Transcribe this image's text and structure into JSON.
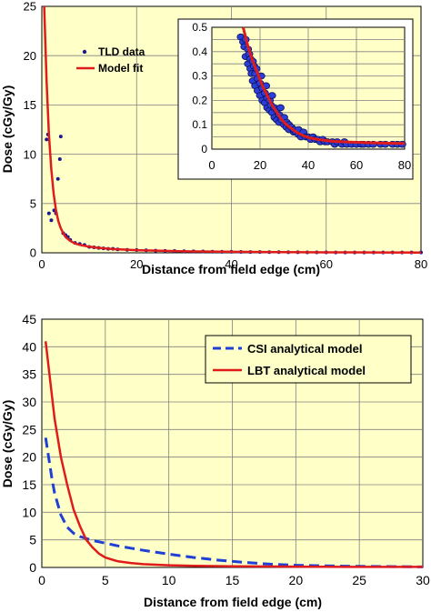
{
  "chart_data": [
    {
      "type": "scatter",
      "panel": "top",
      "xlabel": "Distance from field edge (cm)",
      "ylabel": "Dose (cGy/Gy)",
      "xlim": [
        0,
        80
      ],
      "ylim": [
        0,
        25
      ],
      "xticks": [
        "0",
        "20",
        "40",
        "60",
        "80"
      ],
      "yticks": [
        "0",
        "5",
        "10",
        "15",
        "20",
        "25"
      ],
      "grid": true,
      "legend_position": "top-left",
      "colors": {
        "plot_bg": "#ffffc8",
        "points": "#1a1a8c",
        "fit": "#e01b1b",
        "grid": "#808080"
      },
      "series": [
        {
          "name": "TLD data",
          "kind": "scatter",
          "x": [
            1.0,
            1.3,
            1.5,
            2.0,
            2.6,
            3.0,
            3.4,
            3.8,
            4.0,
            4.5,
            5.0,
            5.5,
            6.0,
            7.0,
            8.0,
            9.0,
            10.0,
            11.0,
            12.0,
            13.0,
            14.0,
            15.0,
            16.0,
            18.0,
            20.0,
            22.0,
            24.0,
            26.0,
            28.0,
            30.0,
            32.0,
            34.0,
            36.0,
            38.0,
            40.0,
            42.0,
            44.0,
            46.0,
            48.0,
            50.0,
            52.0,
            54.0,
            56.0,
            58.0,
            60.0,
            62.0,
            64.0,
            66.0,
            68.0,
            70.0,
            72.0,
            74.0,
            76.0,
            78.0,
            80.0
          ],
          "y": [
            11.5,
            12.0,
            4.0,
            3.3,
            4.3,
            4.0,
            7.5,
            9.5,
            11.8,
            2.0,
            1.8,
            1.6,
            1.3,
            1.0,
            0.9,
            0.8,
            0.6,
            0.55,
            0.5,
            0.45,
            0.4,
            0.4,
            0.35,
            0.3,
            0.28,
            0.25,
            0.22,
            0.2,
            0.18,
            0.16,
            0.15,
            0.14,
            0.12,
            0.1,
            0.1,
            0.09,
            0.08,
            0.08,
            0.07,
            0.07,
            0.06,
            0.06,
            0.05,
            0.05,
            0.05,
            0.04,
            0.04,
            0.04,
            0.04,
            0.03,
            0.03,
            0.03,
            0.03,
            0.03,
            0.03
          ]
        },
        {
          "name": "Model fit",
          "kind": "line",
          "x": [
            0.5,
            1.0,
            1.5,
            2.0,
            2.5,
            3.0,
            3.5,
            4.0,
            4.5,
            5.0,
            6.0,
            7.0,
            8.0,
            10.0,
            12.0,
            15.0,
            20.0,
            25.0,
            30.0,
            40.0,
            50.0,
            60.0,
            70.0,
            80.0
          ],
          "y": [
            25.0,
            17.5,
            12.0,
            8.5,
            6.0,
            4.3,
            3.2,
            2.5,
            2.0,
            1.6,
            1.2,
            0.95,
            0.8,
            0.62,
            0.5,
            0.38,
            0.27,
            0.2,
            0.15,
            0.1,
            0.07,
            0.05,
            0.04,
            0.03
          ]
        }
      ]
    },
    {
      "type": "scatter",
      "panel": "top-inset",
      "xlim": [
        0,
        80
      ],
      "ylim": [
        0,
        0.5
      ],
      "xticks": [
        "0",
        "20",
        "40",
        "60",
        "80"
      ],
      "yticks": [
        "0",
        "0.05",
        "0.1",
        "0.15",
        "0.2",
        "0.25",
        "0.3",
        "0.35",
        "0.4",
        "0.45",
        "0.5"
      ],
      "grid": true,
      "colors": {
        "plot_bg": "#ffffc8",
        "points": "#2a3fd6",
        "point_edge": "#101060",
        "fit": "#e01b1b",
        "grid": "#808080"
      },
      "series": [
        {
          "name": "TLD data",
          "kind": "scatter",
          "x": [
            12,
            13,
            13.5,
            14,
            14,
            15,
            15,
            15.5,
            16,
            16,
            16.5,
            17,
            17,
            17.5,
            18,
            18,
            18.5,
            19,
            19,
            20,
            20,
            20.5,
            21,
            21,
            22,
            22,
            22.5,
            23,
            23,
            24,
            24,
            24.5,
            25,
            25,
            26,
            26,
            27,
            27,
            28,
            28,
            28.5,
            29,
            30,
            30,
            31,
            31,
            32,
            32,
            33,
            34,
            34,
            35,
            36,
            36,
            37,
            38,
            38,
            39,
            40,
            41,
            42,
            43,
            44,
            45,
            46,
            47,
            48,
            50,
            51,
            52,
            54,
            55,
            56,
            58,
            60,
            62,
            63,
            65,
            67,
            70,
            72,
            75,
            77,
            79
          ],
          "y": [
            0.46,
            0.44,
            0.42,
            0.45,
            0.38,
            0.41,
            0.35,
            0.39,
            0.33,
            0.37,
            0.31,
            0.36,
            0.28,
            0.34,
            0.26,
            0.31,
            0.33,
            0.24,
            0.29,
            0.22,
            0.27,
            0.3,
            0.25,
            0.2,
            0.23,
            0.19,
            0.26,
            0.21,
            0.17,
            0.2,
            0.16,
            0.18,
            0.22,
            0.15,
            0.17,
            0.13,
            0.16,
            0.12,
            0.14,
            0.11,
            0.17,
            0.12,
            0.1,
            0.13,
            0.09,
            0.11,
            0.08,
            0.1,
            0.09,
            0.07,
            0.08,
            0.07,
            0.06,
            0.08,
            0.05,
            0.06,
            0.07,
            0.05,
            0.05,
            0.04,
            0.05,
            0.04,
            0.04,
            0.03,
            0.04,
            0.03,
            0.03,
            0.03,
            0.02,
            0.03,
            0.02,
            0.03,
            0.02,
            0.02,
            0.02,
            0.02,
            0.02,
            0.02,
            0.02,
            0.02,
            0.02,
            0.02,
            0.02,
            0.02
          ]
        },
        {
          "name": "Model fit",
          "kind": "line",
          "x": [
            13,
            15,
            17,
            19,
            21,
            23,
            25,
            27,
            29,
            31,
            33,
            35,
            38,
            41,
            45,
            50,
            55,
            60,
            65,
            70,
            75,
            80
          ],
          "y": [
            0.5,
            0.42,
            0.36,
            0.31,
            0.26,
            0.22,
            0.18,
            0.15,
            0.12,
            0.1,
            0.085,
            0.07,
            0.055,
            0.045,
            0.038,
            0.032,
            0.03,
            0.028,
            0.026,
            0.025,
            0.024,
            0.023
          ]
        }
      ]
    },
    {
      "type": "line",
      "panel": "bottom",
      "xlabel": "Distance from field edge (cm)",
      "ylabel": "Dose (cGy/Gy)",
      "xlim": [
        0,
        30
      ],
      "ylim": [
        0,
        45
      ],
      "xticks": [
        "0",
        "5",
        "10",
        "15",
        "20",
        "25",
        "30"
      ],
      "yticks": [
        "0",
        "5",
        "10",
        "15",
        "20",
        "25",
        "30",
        "35",
        "40",
        "45"
      ],
      "grid": true,
      "legend_position": "top-right",
      "colors": {
        "plot_bg": "#ffffc8",
        "csi": "#1f3fd6",
        "lbt": "#e01b1b",
        "grid": "#808080"
      },
      "series": [
        {
          "name": "CSI analytical model",
          "kind": "dashed-line",
          "x": [
            0.3,
            0.5,
            0.8,
            1.0,
            1.5,
            2.0,
            2.5,
            3.0,
            4.0,
            5.0,
            6.0,
            7.0,
            8.0,
            10.0,
            12.0,
            14.0,
            16.0,
            18.0,
            20.0,
            22.0,
            25.0,
            28.0,
            30.0
          ],
          "y": [
            23.5,
            20.5,
            16.0,
            13.5,
            9.5,
            7.3,
            6.2,
            5.6,
            4.9,
            4.4,
            3.9,
            3.5,
            3.1,
            2.4,
            1.8,
            1.3,
            0.9,
            0.6,
            0.4,
            0.3,
            0.2,
            0.15,
            0.1
          ]
        },
        {
          "name": "LBT analytical model",
          "kind": "line",
          "x": [
            0.3,
            0.5,
            0.8,
            1.0,
            1.5,
            2.0,
            2.5,
            3.0,
            3.5,
            4.0,
            4.5,
            5.0,
            6.0,
            7.0,
            8.0,
            10.0,
            12.0,
            15.0,
            20.0,
            25.0,
            30.0
          ],
          "y": [
            41.0,
            37.0,
            31.0,
            27.0,
            20.0,
            15.0,
            10.5,
            7.5,
            5.0,
            3.6,
            2.5,
            1.8,
            1.1,
            0.8,
            0.6,
            0.4,
            0.3,
            0.2,
            0.15,
            0.1,
            0.1
          ]
        }
      ]
    }
  ]
}
